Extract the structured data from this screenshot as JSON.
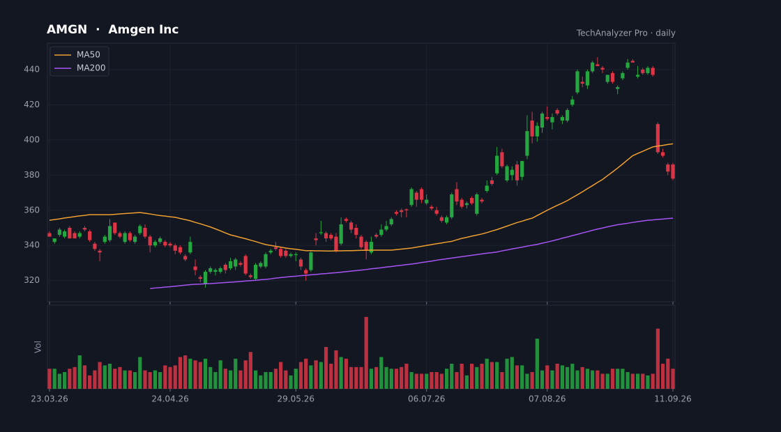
{
  "chart_data": {
    "type": "candlestick",
    "title": "AMGN  ·  Amgen Inc",
    "subtitle": "TechAnalyzer Pro · daily",
    "x": [
      "23.03.26",
      "24.03.26",
      "25.03.26",
      "26.03.26",
      "27.03.26",
      "30.03.26",
      "31.03.26",
      "01.04.26",
      "02.04.26",
      "03.04.26",
      "06.04.26",
      "07.04.26",
      "08.04.26",
      "09.04.26",
      "10.04.26",
      "13.04.26",
      "14.04.26",
      "15.04.26",
      "16.04.26",
      "17.04.26",
      "20.04.26",
      "21.04.26",
      "22.04.26",
      "23.04.26",
      "24.04.26",
      "27.04.26",
      "28.04.26",
      "29.04.26",
      "30.04.26",
      "01.05.26",
      "04.05.26",
      "05.05.26",
      "06.05.26",
      "07.05.26",
      "08.05.26",
      "11.05.26",
      "12.05.26",
      "13.05.26",
      "14.05.26",
      "15.05.26",
      "18.05.26",
      "19.05.26",
      "20.05.26",
      "21.05.26",
      "22.05.26",
      "25.05.26",
      "26.05.26",
      "27.05.26",
      "28.05.26",
      "29.05.26",
      "01.06.26",
      "02.06.26",
      "03.06.26",
      "04.06.26",
      "05.06.26",
      "08.06.26",
      "09.06.26",
      "10.06.26",
      "11.06.26",
      "12.06.26",
      "15.06.26",
      "16.06.26",
      "17.06.26",
      "18.06.26",
      "19.06.26",
      "22.06.26",
      "23.06.26",
      "24.06.26",
      "25.06.26",
      "26.06.26",
      "29.06.26",
      "30.06.26",
      "01.07.26",
      "02.07.26",
      "03.07.26",
      "06.07.26",
      "07.07.26",
      "08.07.26",
      "09.07.26",
      "10.07.26",
      "13.07.26",
      "14.07.26",
      "15.07.26",
      "16.07.26",
      "17.07.26",
      "20.07.26",
      "21.07.26",
      "22.07.26",
      "23.07.26",
      "24.07.26",
      "27.07.26",
      "28.07.26",
      "29.07.26",
      "30.07.26",
      "31.07.26",
      "03.08.26",
      "04.08.26",
      "05.08.26",
      "06.08.26",
      "07.08.26",
      "10.08.26",
      "11.08.26",
      "12.08.26",
      "13.08.26",
      "14.08.26",
      "17.08.26",
      "18.08.26",
      "19.08.26",
      "20.08.26",
      "21.08.26",
      "24.08.26",
      "25.08.26",
      "26.08.26",
      "27.08.26",
      "28.08.26",
      "31.08.26",
      "01.09.26",
      "02.09.26",
      "03.09.26",
      "04.09.26",
      "07.09.26",
      "08.09.26",
      "09.09.26",
      "10.09.26",
      "11.09.26"
    ],
    "open": [
      347,
      342,
      346,
      345,
      350,
      347,
      345,
      350,
      348,
      341,
      337,
      342,
      343,
      353,
      347,
      342,
      347,
      342,
      347,
      350,
      345,
      340,
      342,
      342,
      341,
      340,
      339,
      334,
      336,
      328,
      322,
      318,
      325,
      325,
      325,
      329,
      327,
      328,
      330,
      334,
      323,
      321,
      328,
      328,
      336,
      339,
      338,
      337,
      334,
      334.5,
      332,
      326,
      326,
      344,
      347,
      347,
      346,
      345,
      341,
      355,
      353,
      350,
      345,
      342,
      336,
      346,
      346,
      349,
      352,
      359,
      360,
      360.5,
      363,
      370,
      372,
      364,
      362,
      360,
      356,
      353,
      356,
      372,
      366,
      363,
      367,
      358,
      366,
      371,
      377,
      381,
      393,
      377,
      380,
      386,
      379,
      391,
      411,
      402,
      407,
      413,
      410,
      417,
      411,
      411,
      420,
      427,
      433,
      431,
      439,
      443,
      441,
      433,
      438,
      429,
      435,
      441,
      445,
      436,
      440,
      438,
      441,
      409,
      393,
      386,
      386
    ],
    "high": [
      348,
      344,
      350,
      349,
      351,
      348,
      348,
      351,
      349,
      342,
      338,
      346,
      355,
      353,
      348,
      348,
      348,
      346,
      352,
      352,
      346,
      343,
      345,
      343,
      342,
      341,
      340,
      335,
      345,
      332,
      323,
      326,
      328,
      327,
      328,
      330,
      333,
      333,
      331,
      335,
      324,
      330,
      331,
      336,
      338,
      342,
      339,
      338,
      336,
      336,
      333,
      327,
      337,
      347,
      354,
      348,
      347,
      347,
      356,
      356,
      354,
      352,
      346,
      343,
      345,
      347,
      352,
      354,
      356,
      360,
      361,
      361,
      373,
      371,
      373,
      369,
      363,
      362,
      357,
      357,
      370,
      376,
      367,
      365,
      368,
      370,
      367,
      377,
      379,
      396,
      395,
      386,
      385,
      388,
      388,
      414,
      416,
      410,
      416,
      419,
      415,
      418,
      414,
      418,
      425,
      440,
      436,
      440,
      445,
      447,
      442,
      437,
      439,
      431,
      439,
      446,
      446,
      442,
      441,
      442,
      442,
      410,
      395,
      387,
      387
    ],
    "low": [
      345,
      341,
      345,
      344,
      344,
      344,
      344,
      348,
      342,
      337,
      331,
      341,
      342,
      346,
      344,
      341,
      342,
      341,
      346,
      344,
      336,
      339,
      341,
      339,
      339,
      335,
      335,
      331,
      335,
      323,
      319,
      316,
      324,
      323,
      324,
      324,
      326,
      326,
      328,
      323,
      321,
      320,
      327,
      327,
      335,
      337,
      333,
      333,
      333,
      331,
      326,
      320,
      325,
      340,
      346,
      342,
      343,
      336,
      340,
      353,
      347,
      344,
      338,
      332,
      335,
      344,
      345,
      348,
      351,
      357,
      356,
      356,
      362,
      362,
      364,
      363,
      360,
      357,
      353,
      352,
      355,
      363,
      361,
      361,
      363,
      357,
      364,
      370,
      374,
      380,
      384,
      376,
      377,
      374,
      377,
      389,
      398,
      399,
      404,
      411,
      406,
      414,
      409,
      410,
      419,
      426,
      430,
      429,
      438,
      442,
      438,
      432,
      432,
      426,
      434,
      440,
      444,
      435,
      437,
      437,
      436,
      392,
      390,
      380,
      377
    ],
    "close": [
      345,
      344,
      349,
      348,
      344,
      344,
      347,
      349,
      343,
      338,
      336,
      345,
      351,
      347,
      345,
      347,
      343,
      345,
      351,
      345,
      340,
      342,
      344,
      340,
      340,
      337,
      336,
      332,
      342,
      326,
      321,
      325,
      327,
      326,
      327,
      326,
      331,
      332,
      329,
      324,
      322,
      329,
      330,
      335,
      337,
      338,
      334,
      334,
      335,
      335,
      328,
      324,
      336,
      343,
      347.5,
      344,
      344,
      337,
      352,
      354,
      349,
      346,
      339,
      337,
      342,
      345,
      349,
      351,
      355,
      358,
      359,
      360,
      372,
      366,
      366,
      366,
      361,
      358,
      354,
      356,
      369,
      365,
      362,
      364,
      364,
      369,
      365,
      374,
      375,
      391,
      385,
      385,
      383,
      377,
      388,
      405,
      402,
      408,
      415,
      412,
      413,
      415,
      413,
      417,
      423,
      439,
      432,
      439,
      444,
      442,
      440,
      437,
      433,
      430,
      438,
      444,
      444,
      437,
      438,
      441,
      437,
      393,
      391,
      382,
      378
    ],
    "volume": [
      1.2,
      1.2,
      0.9,
      1.0,
      1.2,
      1.3,
      2.0,
      1.4,
      0.8,
      1.1,
      1.6,
      1.4,
      1.5,
      1.2,
      1.3,
      1.1,
      1.1,
      1.0,
      1.9,
      1.1,
      1.0,
      1.1,
      1.0,
      1.4,
      1.3,
      1.4,
      1.9,
      2.0,
      1.8,
      1.7,
      1.6,
      1.8,
      1.3,
      1.0,
      1.7,
      1.2,
      1.1,
      1.8,
      1.1,
      1.7,
      2.2,
      1.1,
      0.8,
      1.0,
      1.0,
      1.2,
      1.6,
      1.1,
      0.8,
      1.2,
      1.6,
      1.8,
      1.4,
      1.7,
      1.6,
      2.5,
      1.5,
      2.3,
      1.9,
      1.8,
      1.3,
      1.3,
      1.3,
      4.3,
      1.2,
      1.3,
      1.9,
      1.3,
      1.2,
      1.2,
      1.3,
      1.5,
      1.0,
      0.9,
      0.9,
      0.9,
      1.0,
      1.0,
      0.9,
      1.2,
      1.5,
      1.0,
      1.5,
      0.8,
      1.5,
      1.3,
      1.5,
      1.8,
      1.6,
      1.6,
      1.0,
      1.8,
      1.9,
      1.4,
      1.4,
      0.9,
      1.0,
      3.0,
      1.1,
      1.4,
      1.1,
      1.5,
      1.4,
      1.3,
      1.5,
      1.1,
      1.3,
      1.2,
      1.1,
      1.1,
      0.9,
      0.9,
      1.2,
      1.2,
      1.2,
      1.0,
      0.9,
      0.9,
      0.9,
      0.8,
      0.9,
      3.6,
      1.5,
      1.8,
      1.2
    ],
    "up_color": "#26a641",
    "down_color": "#dc3545",
    "series": [
      {
        "name": "MA50",
        "color": "#f0a030",
        "values": [
          354.3,
          354.7,
          355.1,
          355.6,
          356.0,
          356.4,
          356.8,
          357.1,
          357.5,
          357.5,
          357.5,
          357.5,
          357.5,
          357.7,
          357.9,
          358.1,
          358.3,
          358.5,
          358.7,
          358.3,
          357.9,
          357.4,
          357.0,
          356.7,
          356.3,
          356.0,
          355.3,
          354.7,
          354.0,
          353.1,
          352.3,
          351.4,
          350.5,
          349.4,
          348.3,
          347.1,
          346.0,
          345.3,
          344.5,
          343.8,
          343.0,
          342.2,
          341.3,
          340.5,
          340.0,
          339.5,
          339.0,
          338.5,
          338.1,
          337.8,
          337.4,
          337.0,
          337.0,
          336.9,
          336.9,
          336.8,
          336.8,
          336.9,
          336.9,
          337.0,
          337.0,
          337.1,
          337.2,
          337.2,
          337.3,
          337.3,
          337.3,
          337.3,
          337.3,
          337.6,
          337.9,
          338.2,
          338.5,
          339.0,
          339.5,
          340.0,
          340.5,
          341.0,
          341.4,
          341.9,
          342.3,
          343.2,
          344.0,
          344.6,
          345.3,
          345.9,
          346.5,
          347.3,
          348.2,
          349.0,
          350.0,
          351.0,
          352.0,
          353.0,
          353.8,
          354.7,
          355.5,
          357.0,
          358.5,
          360.0,
          361.4,
          362.8,
          364.1,
          365.5,
          367.2,
          368.8,
          370.5,
          372.3,
          374.0,
          375.8,
          377.5,
          379.7,
          381.8,
          384.0,
          386.3,
          388.7,
          391.0,
          392.3,
          393.5,
          394.8,
          396.0,
          396.5,
          396.9,
          397.4,
          397.8
        ]
      },
      {
        "name": "MA200",
        "color": "#a855f7",
        "values": [
          null,
          null,
          null,
          null,
          null,
          null,
          null,
          null,
          null,
          null,
          null,
          null,
          null,
          null,
          null,
          null,
          null,
          null,
          null,
          null,
          315.5,
          315.8,
          316.0,
          316.3,
          316.5,
          316.8,
          317.1,
          317.4,
          317.7,
          317.9,
          318.0,
          318.2,
          318.3,
          318.5,
          318.7,
          318.9,
          319.1,
          319.3,
          319.5,
          319.8,
          320.0,
          320.2,
          320.5,
          320.7,
          321.0,
          321.4,
          321.7,
          322.0,
          322.3,
          322.5,
          322.8,
          323.0,
          323.3,
          323.5,
          323.8,
          324.0,
          324.3,
          324.5,
          324.8,
          325.1,
          325.4,
          325.7,
          326.0,
          326.3,
          326.7,
          327.0,
          327.3,
          327.7,
          328.0,
          328.4,
          328.7,
          329.1,
          329.4,
          329.8,
          330.3,
          330.7,
          331.1,
          331.6,
          332.0,
          332.4,
          332.8,
          333.2,
          333.6,
          334.0,
          334.4,
          334.8,
          335.2,
          335.6,
          335.9,
          336.3,
          336.9,
          337.4,
          338.0,
          338.5,
          339.0,
          339.6,
          340.1,
          340.6,
          341.3,
          341.9,
          342.6,
          343.3,
          344.1,
          344.8,
          345.6,
          346.3,
          347.1,
          347.8,
          348.6,
          349.3,
          349.9,
          350.6,
          351.2,
          351.8,
          352.2,
          352.6,
          353.1,
          353.5,
          353.9,
          354.3,
          354.5,
          354.8,
          355.0,
          355.3,
          355.5
        ]
      }
    ],
    "ylim": [
      308,
      455
    ],
    "yticks": [
      320,
      340,
      360,
      380,
      400,
      420,
      440
    ],
    "xticks": [
      "23.03.26",
      "24.04.26",
      "29.05.26",
      "06.07.26",
      "07.08.26",
      "11.09.26"
    ],
    "volume_label": "Vol",
    "volume_ylim": [
      0,
      5
    ],
    "grid": true,
    "legend": "upper left"
  }
}
